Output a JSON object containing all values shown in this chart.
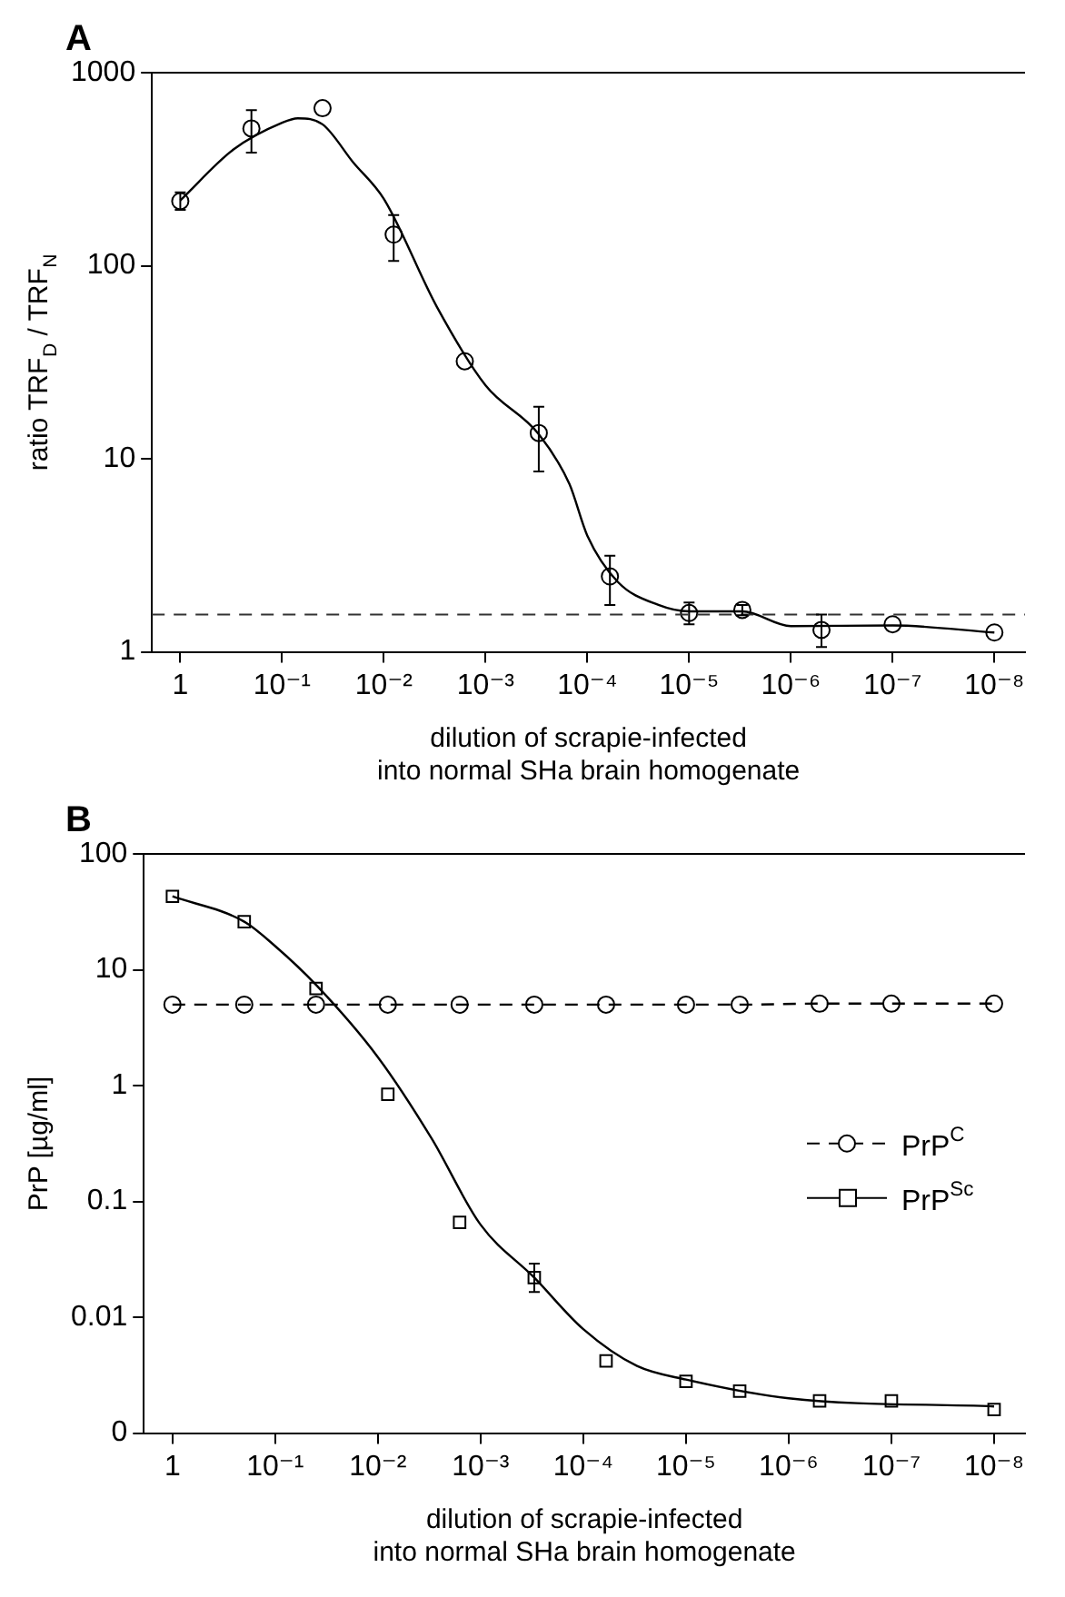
{
  "chart_data": [
    {
      "type": "scatter",
      "title": "A",
      "xlabel": "dilution of scrapie-infected\ninto normal SHa brain homogenate",
      "ylabel": "ratio TRF$_{D}$ / TRF$_{N}$",
      "log": "xy",
      "grid": false,
      "legend": false,
      "xlim": [
        1.9,
        5e-09
      ],
      "xticks": [
        {
          "value": 1,
          "label": "1"
        },
        {
          "value": 0.1,
          "label": "10⁻¹"
        },
        {
          "value": 0.01,
          "label": "10⁻²"
        },
        {
          "value": 0.001,
          "label": "10⁻³"
        },
        {
          "value": 0.0001,
          "label": "10⁻⁴"
        },
        {
          "value": 1e-05,
          "label": "10⁻⁵"
        },
        {
          "value": 1e-06,
          "label": "10⁻⁶"
        },
        {
          "value": 1e-07,
          "label": "10⁻⁷"
        },
        {
          "value": 1e-08,
          "label": "10⁻⁸"
        }
      ],
      "ylim": [
        1,
        1000
      ],
      "yticks": [
        1,
        10,
        100,
        1000
      ],
      "ref_lines": [
        {
          "axis": "y",
          "value": 1.56,
          "color": "#333333",
          "line_style": "dashed"
        }
      ],
      "series": [
        {
          "color": "#000000",
          "marker": "circle",
          "x": [
            1,
            0.2,
            0.04,
            0.008,
            0.0016,
            0.0003,
            6e-05,
            1e-05,
            3e-06,
            5e-07,
            1e-07,
            1e-08
          ],
          "values": [
            216,
            514,
            655,
            145,
            32,
            13.6,
            2.46,
            1.59,
            1.65,
            1.3,
            1.39,
            1.26
          ],
          "errors": [
            [
              195,
              240
            ],
            [
              385,
              640
            ],
            null,
            [
              106,
              183
            ],
            null,
            [
              8.6,
              18.6
            ],
            [
              1.75,
              3.15
            ],
            [
              1.39,
              1.8
            ],
            [
              1.55,
              1.75
            ],
            [
              1.06,
              1.56
            ],
            null,
            null
          ]
        },
        {
          "type": "line",
          "color": "#000000",
          "marker": "none",
          "line_style": "solid",
          "x": [
            1,
            0.3,
            0.1,
            0.07,
            0.04,
            0.02,
            0.01,
            0.003,
            0.001,
            0.0003,
            0.00015,
            0.0001,
            5e-05,
            2e-05,
            1e-05,
            3e-06,
            1e-06,
            1e-07,
            1e-08
          ],
          "values": [
            218,
            400,
            550,
            580,
            540,
            343,
            222,
            61,
            24,
            13.4,
            7.4,
            4,
            2.3,
            1.75,
            1.62,
            1.62,
            1.36,
            1.37,
            1.26
          ]
        }
      ]
    },
    {
      "type": "scatter",
      "title": "B",
      "xlabel": "dilution of scrapie-infected\ninto normal SHa brain homogenate",
      "ylabel": "PrP [µg/ml]",
      "log": "xy",
      "grid": false,
      "legend": "right",
      "xlim": [
        1.9,
        5e-09
      ],
      "xticks": [
        {
          "value": 1,
          "label": "1"
        },
        {
          "value": 0.1,
          "label": "10⁻¹"
        },
        {
          "value": 0.01,
          "label": "10⁻²"
        },
        {
          "value": 0.001,
          "label": "10⁻³"
        },
        {
          "value": 0.0001,
          "label": "10⁻⁴"
        },
        {
          "value": 1e-05,
          "label": "10⁻⁵"
        },
        {
          "value": 1e-06,
          "label": "10⁻⁶"
        },
        {
          "value": 1e-07,
          "label": "10⁻⁷"
        },
        {
          "value": 1e-08,
          "label": "10⁻⁸"
        }
      ],
      "ylim": [
        0.001,
        100
      ],
      "yticks": [
        {
          "value": 0.001,
          "label": "0"
        },
        0.01,
        0.1,
        1,
        10,
        100
      ],
      "series": [
        {
          "type": "line",
          "name": "PrP$^{C}$",
          "color": "#000000",
          "marker": "circle",
          "line_style": "dashed",
          "x": [
            1,
            0.2,
            0.04,
            0.008,
            0.0016,
            0.0003,
            6e-05,
            1e-05,
            3e-06,
            5e-07,
            1e-07,
            1e-08
          ],
          "values": [
            5,
            5,
            5,
            5,
            5,
            5,
            5,
            5,
            5,
            5.1,
            5.1,
            5.1
          ]
        },
        {
          "name": "PrP$^{Sc}$",
          "color": "#000000",
          "marker": "square",
          "line_style": "solid",
          "x": [
            1,
            0.2,
            0.04,
            0.008,
            0.0016,
            0.0003,
            6e-05,
            1e-05,
            3e-06,
            5e-07,
            1e-07,
            1e-08
          ],
          "values": [
            43,
            26,
            6.9,
            0.84,
            0.066,
            0.022,
            0.0042,
            0.0028,
            0.0023,
            0.0019,
            0.0019,
            0.0016
          ],
          "errors": [
            null,
            null,
            null,
            null,
            null,
            [
              0.0165,
              0.029
            ],
            null,
            null,
            null,
            null,
            null,
            null
          ]
        },
        {
          "type": "line",
          "color": "#000000",
          "marker": "none",
          "line_style": "solid",
          "x": [
            1,
            0.2,
            0.1,
            0.04,
            0.01,
            0.003,
            0.001,
            0.0003,
            0.0001,
            3e-05,
            1e-05,
            1e-06,
            1e-08
          ],
          "values": [
            43,
            26,
            16,
            7.4,
            1.76,
            0.35,
            0.063,
            0.022,
            0.0079,
            0.0038,
            0.0029,
            0.002,
            0.0017
          ]
        }
      ]
    }
  ]
}
